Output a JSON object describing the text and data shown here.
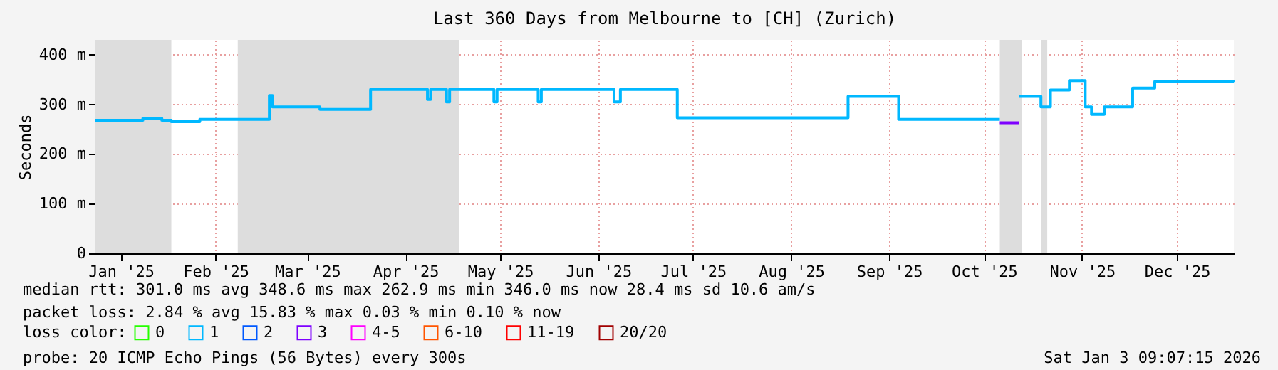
{
  "chart_data": {
    "type": "step",
    "title": "Last 360 Days from Melbourne to [CH] (Zurich)",
    "ylabel": "Seconds",
    "legend_title": "loss color:",
    "legend": "bottom left",
    "xlim": [
      "2025-01-08",
      "2026-01-03"
    ],
    "ylim": [
      0,
      430
    ],
    "xticks": [
      {
        "value": "2025-01-16",
        "label": "Jan '25"
      },
      {
        "value": "2025-02-15",
        "label": "Feb '25"
      },
      {
        "value": "2025-03-16",
        "label": "Mar '25"
      },
      {
        "value": "2025-04-16",
        "label": "Apr '25"
      },
      {
        "value": "2025-05-16",
        "label": "May '25"
      },
      {
        "value": "2025-06-16",
        "label": "Jun '25"
      },
      {
        "value": "2025-07-16",
        "label": "Jul '25"
      },
      {
        "value": "2025-08-16",
        "label": "Aug '25"
      },
      {
        "value": "2025-09-16",
        "label": "Sep '25"
      },
      {
        "value": "2025-10-16",
        "label": "Oct '25"
      },
      {
        "value": "2025-11-16",
        "label": "Nov '25"
      },
      {
        "value": "2025-12-16",
        "label": "Dec '25"
      }
    ],
    "yticks": [
      0,
      {
        "value": 100,
        "label": "100 m"
      },
      {
        "value": 200,
        "label": "200 m"
      },
      {
        "value": 300,
        "label": "300 m"
      },
      {
        "value": 400,
        "label": "400 m"
      }
    ],
    "grid": true,
    "series": [
      {
        "name": "0",
        "color": "#26ff00"
      },
      {
        "name": "1",
        "color": "#00b8ff",
        "x": [
          "2025-01-08",
          "2025-01-23",
          "2025-01-29",
          "2025-02-01",
          "2025-02-10",
          "2025-03-03",
          "2025-03-04",
          "2025-03-05",
          "2025-03-20",
          "2025-04-05",
          "2025-04-23",
          "2025-04-24",
          "2025-04-29",
          "2025-04-30",
          "2025-05-14",
          "2025-05-15",
          "2025-05-28",
          "2025-05-29",
          "2025-06-21",
          "2025-06-23",
          "2025-07-11",
          "2025-09-03",
          "2025-09-19",
          "2025-10-21",
          "2025-10-24",
          "2025-10-27",
          "2025-11-03",
          "2025-11-06",
          "2025-11-12",
          "2025-11-17",
          "2025-11-19",
          "2025-11-23",
          "2025-12-02",
          "2025-12-09",
          "2026-01-03"
        ],
        "values": [
          268,
          272,
          268,
          265,
          270,
          270,
          318,
          295,
          290,
          330,
          310,
          330,
          305,
          330,
          305,
          330,
          305,
          330,
          305,
          330,
          273,
          316,
          270,
          270,
          null,
          316,
          295,
          329,
          348,
          295,
          280,
          295,
          333,
          346,
          345
        ]
      },
      {
        "name": "2",
        "color": "#0059ff"
      },
      {
        "name": "3",
        "color": "#7e00ff",
        "x": [
          "2025-10-21",
          "2025-10-27"
        ],
        "values": [
          263,
          263
        ]
      },
      {
        "name": "4-5",
        "color": "#ff00ff"
      },
      {
        "name": "6-10",
        "color": "#ff5500"
      },
      {
        "name": "11-19",
        "color": "#ff0000"
      },
      {
        "name": "20/20",
        "color": "#a10000"
      }
    ],
    "bands": [
      {
        "axis": "x",
        "from": "2025-01-08",
        "to": "2025-02-01",
        "color": "#dddddd"
      },
      {
        "axis": "x",
        "from": "2025-02-22",
        "to": "2025-05-03",
        "color": "#dddddd"
      },
      {
        "axis": "x",
        "from": "2025-10-21",
        "to": "2025-10-28",
        "color": "#dddddd"
      },
      {
        "axis": "x",
        "from": "2025-11-03",
        "to": "2025-11-05",
        "color": "#dddddd"
      }
    ],
    "annotations": [
      "median rtt:  301.0 ms avg  348.6 ms max  262.9 ms min  346.0 ms now  28.4 ms sd  10.6   am/s",
      "packet loss: 2.84 % avg  15.83 % max  0.03 % min  0.10 % now",
      "probe:       20 ICMP Echo Pings (56 Bytes) every 300s",
      "Sat Jan  3 09:07:15 2026"
    ]
  }
}
